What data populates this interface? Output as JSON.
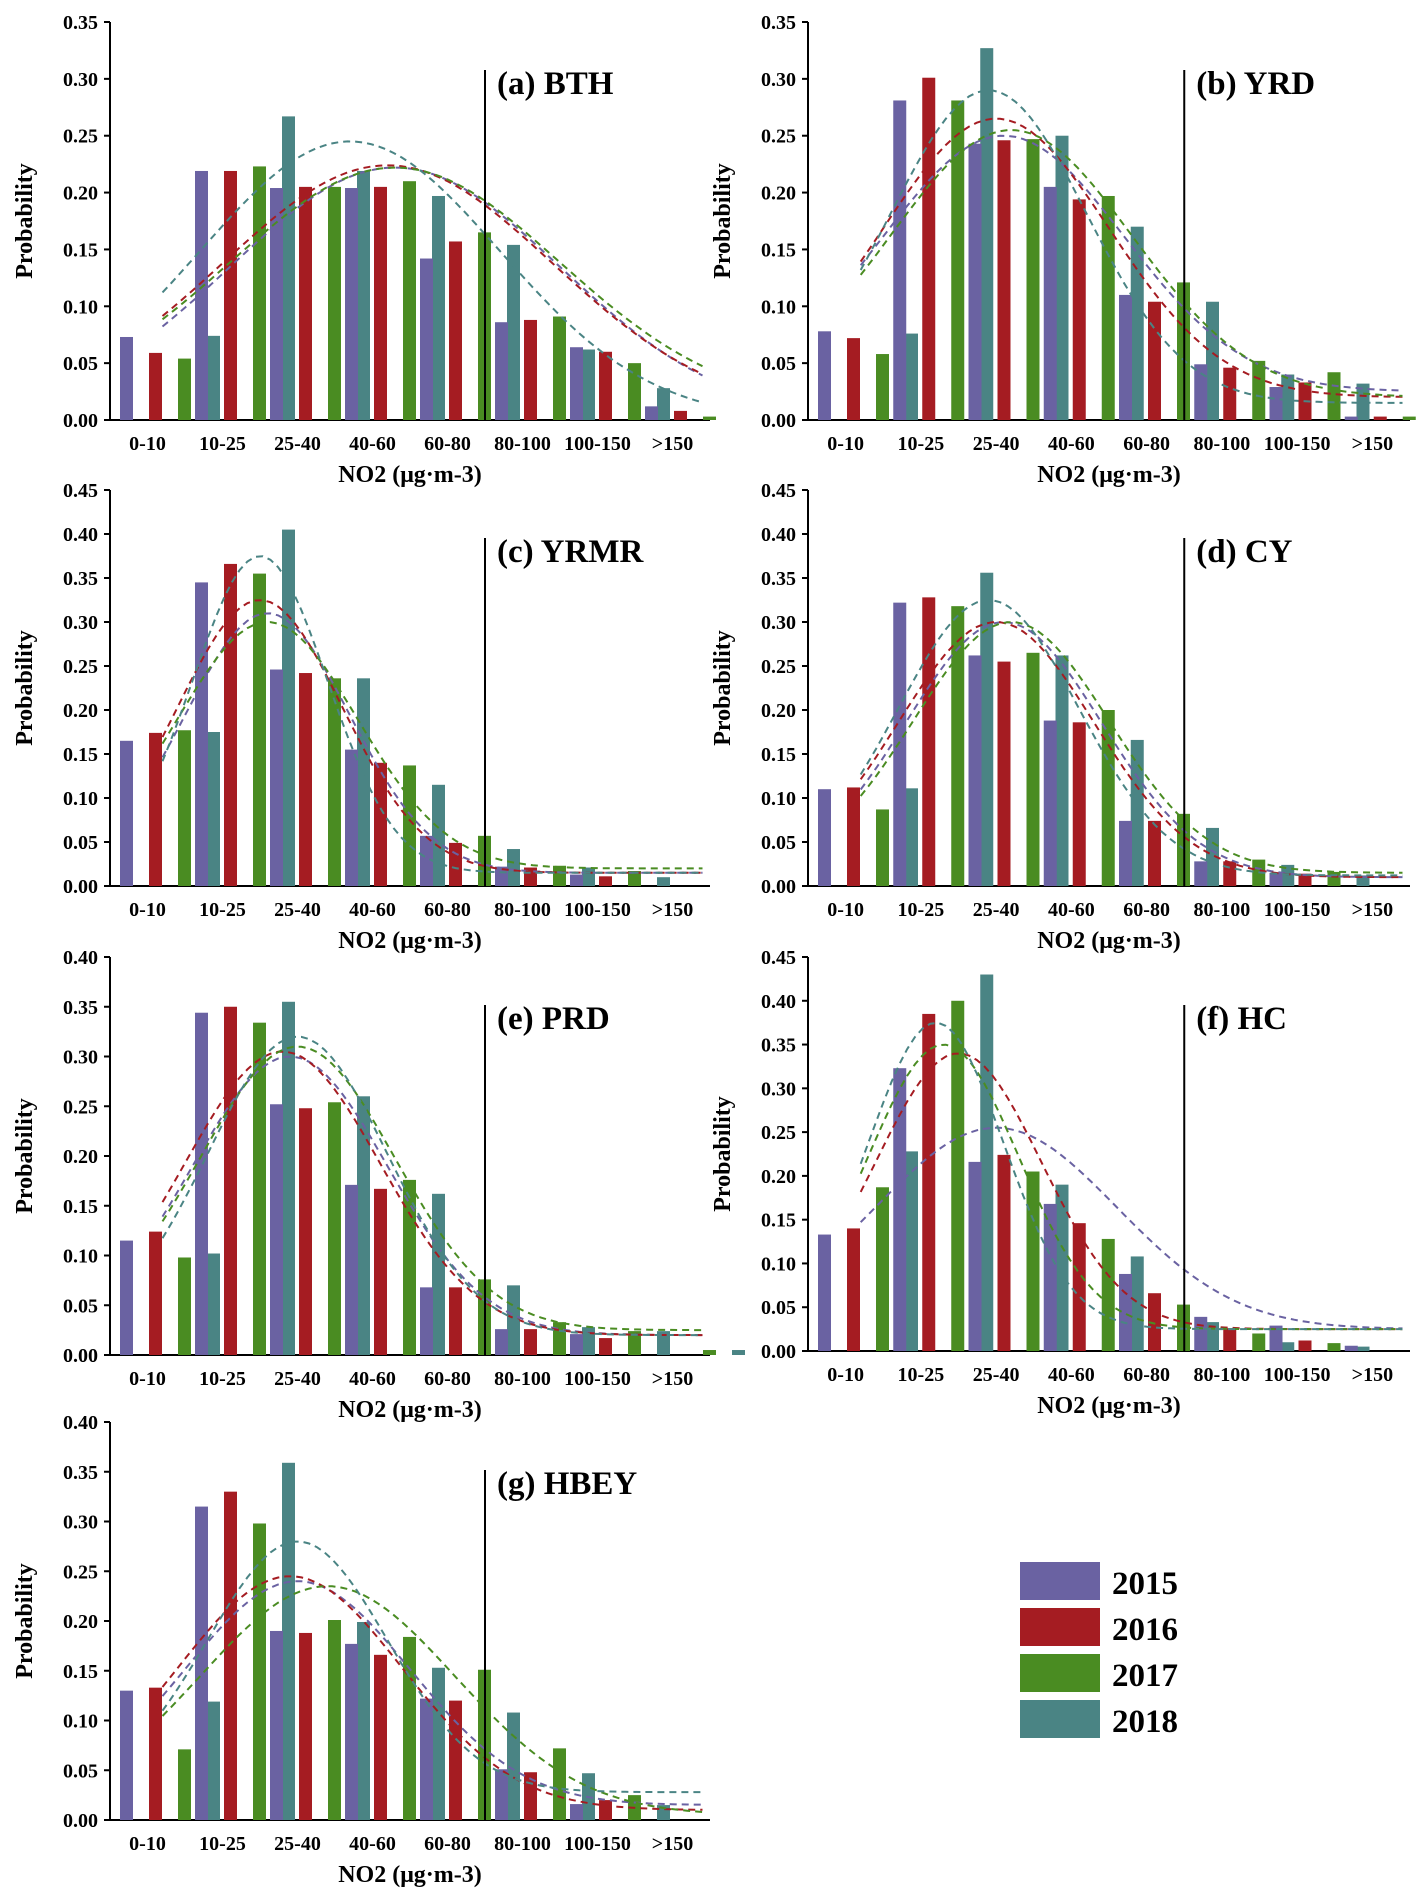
{
  "colors": {
    "2015": "#6a62a2",
    "2016": "#a51c22",
    "2017": "#4a8c22",
    "2018": "#4a8484"
  },
  "legend": [
    "2015",
    "2016",
    "2017",
    "2018"
  ],
  "chart_data": [
    {
      "type": "bar",
      "title": "(a) BTH",
      "xlabel": "NO2 (μg·m-3)",
      "ylabel": "Probability",
      "ylim": [
        0,
        0.35
      ],
      "yticks": [
        "0.00",
        "0.05",
        "0.10",
        "0.15",
        "0.20",
        "0.25",
        "0.30",
        "0.35"
      ],
      "categories": [
        "0-10",
        "10-25",
        "25-40",
        "40-60",
        "60-80",
        "80-100",
        "100-150",
        ">150"
      ],
      "threshold_between": [
        4,
        5
      ],
      "series": [
        {
          "name": "2015",
          "values": [
            0.073,
            0.219,
            0.204,
            0.204,
            0.142,
            0.086,
            0.064,
            0.012
          ]
        },
        {
          "name": "2016",
          "values": [
            0.059,
            0.219,
            0.205,
            0.205,
            0.157,
            0.088,
            0.06,
            0.008
          ]
        },
        {
          "name": "2017",
          "values": [
            0.054,
            0.223,
            0.205,
            0.21,
            0.165,
            0.091,
            0.05,
            0.003
          ]
        },
        {
          "name": "2018",
          "values": [
            0.074,
            0.267,
            0.219,
            0.197,
            0.154,
            0.062,
            0.028,
            0.0
          ]
        }
      ],
      "curves": [
        {
          "name": "2015",
          "peak": 0.222,
          "mu": 3.3,
          "sigma": 2.2,
          "base": 0.0
        },
        {
          "name": "2016",
          "peak": 0.224,
          "mu": 3.2,
          "sigma": 2.2,
          "base": 0.005
        },
        {
          "name": "2017",
          "peak": 0.222,
          "mu": 3.3,
          "sigma": 2.2,
          "base": 0.01
        },
        {
          "name": "2018",
          "peak": 0.245,
          "mu": 2.7,
          "sigma": 2.0,
          "base": 0.0
        }
      ]
    },
    {
      "type": "bar",
      "title": "(b) YRD",
      "xlabel": "NO2 (μg·m-3)",
      "ylabel": "Probability",
      "ylim": [
        0,
        0.35
      ],
      "yticks": [
        "0.00",
        "0.05",
        "0.10",
        "0.15",
        "0.20",
        "0.25",
        "0.30",
        "0.35"
      ],
      "categories": [
        "0-10",
        "10-25",
        "25-40",
        "40-60",
        "60-80",
        "80-100",
        "100-150",
        ">150"
      ],
      "threshold_between": [
        4,
        5
      ],
      "series": [
        {
          "name": "2015",
          "values": [
            0.078,
            0.281,
            0.243,
            0.205,
            0.11,
            0.049,
            0.029,
            0.003
          ]
        },
        {
          "name": "2016",
          "values": [
            0.072,
            0.301,
            0.246,
            0.194,
            0.104,
            0.046,
            0.033,
            0.003
          ]
        },
        {
          "name": "2017",
          "values": [
            0.058,
            0.281,
            0.247,
            0.197,
            0.121,
            0.052,
            0.042,
            0.003
          ]
        },
        {
          "name": "2018",
          "values": [
            0.076,
            0.327,
            0.25,
            0.17,
            0.104,
            0.04,
            0.032,
            0.0
          ]
        }
      ],
      "curves": [
        {
          "name": "2015",
          "peak": 0.25,
          "mu": 2.1,
          "sigma": 1.6,
          "base": 0.025
        },
        {
          "name": "2016",
          "peak": 0.265,
          "mu": 2.0,
          "sigma": 1.5,
          "base": 0.02
        },
        {
          "name": "2017",
          "peak": 0.255,
          "mu": 2.2,
          "sigma": 1.6,
          "base": 0.02
        },
        {
          "name": "2018",
          "peak": 0.29,
          "mu": 1.9,
          "sigma": 1.3,
          "base": 0.015
        }
      ]
    },
    {
      "type": "bar",
      "title": "(c) YRMR",
      "xlabel": "NO2 (μg·m-3)",
      "ylabel": "Probability",
      "ylim": [
        0,
        0.45
      ],
      "yticks": [
        "0.00",
        "0.05",
        "0.10",
        "0.15",
        "0.20",
        "0.25",
        "0.30",
        "0.35",
        "0.40",
        "0.45"
      ],
      "categories": [
        "0-10",
        "10-25",
        "25-40",
        "40-60",
        "60-80",
        "80-100",
        "100-150",
        ">150"
      ],
      "threshold_between": [
        4,
        5
      ],
      "series": [
        {
          "name": "2015",
          "values": [
            0.165,
            0.345,
            0.246,
            0.155,
            0.057,
            0.022,
            0.013,
            0.0
          ]
        },
        {
          "name": "2016",
          "values": [
            0.174,
            0.366,
            0.242,
            0.14,
            0.049,
            0.021,
            0.011,
            0.0
          ]
        },
        {
          "name": "2017",
          "values": [
            0.177,
            0.355,
            0.236,
            0.137,
            0.057,
            0.023,
            0.017,
            0.0
          ]
        },
        {
          "name": "2018",
          "values": [
            0.175,
            0.405,
            0.236,
            0.115,
            0.042,
            0.021,
            0.01,
            0.0
          ]
        }
      ],
      "curves": [
        {
          "name": "2015",
          "peak": 0.31,
          "mu": 1.6,
          "sigma": 1.1,
          "base": 0.015
        },
        {
          "name": "2016",
          "peak": 0.325,
          "mu": 1.5,
          "sigma": 1.1,
          "base": 0.015
        },
        {
          "name": "2017",
          "peak": 0.3,
          "mu": 1.6,
          "sigma": 1.2,
          "base": 0.02
        },
        {
          "name": "2018",
          "peak": 0.375,
          "mu": 1.5,
          "sigma": 0.9,
          "base": 0.015
        }
      ]
    },
    {
      "type": "bar",
      "title": "(d) CY",
      "xlabel": "NO2 (μg·m-3)",
      "ylabel": "Probability",
      "ylim": [
        0,
        0.45
      ],
      "yticks": [
        "0.00",
        "0.05",
        "0.10",
        "0.15",
        "0.20",
        "0.25",
        "0.30",
        "0.35",
        "0.40",
        "0.45"
      ],
      "categories": [
        "0-10",
        "10-25",
        "25-40",
        "40-60",
        "60-80",
        "80-100",
        "100-150",
        ">150"
      ],
      "threshold_between": [
        4,
        5
      ],
      "series": [
        {
          "name": "2015",
          "values": [
            0.11,
            0.322,
            0.262,
            0.188,
            0.074,
            0.028,
            0.015,
            0.0
          ]
        },
        {
          "name": "2016",
          "values": [
            0.112,
            0.328,
            0.255,
            0.186,
            0.074,
            0.028,
            0.014,
            0.0
          ]
        },
        {
          "name": "2017",
          "values": [
            0.087,
            0.318,
            0.265,
            0.2,
            0.082,
            0.03,
            0.016,
            0.0
          ]
        },
        {
          "name": "2018",
          "values": [
            0.111,
            0.356,
            0.262,
            0.166,
            0.066,
            0.024,
            0.012,
            0.0
          ]
        }
      ],
      "curves": [
        {
          "name": "2015",
          "peak": 0.3,
          "mu": 2.1,
          "sigma": 1.3,
          "base": 0.01
        },
        {
          "name": "2016",
          "peak": 0.3,
          "mu": 2.0,
          "sigma": 1.3,
          "base": 0.01
        },
        {
          "name": "2017",
          "peak": 0.3,
          "mu": 2.2,
          "sigma": 1.3,
          "base": 0.015
        },
        {
          "name": "2018",
          "peak": 0.325,
          "mu": 1.9,
          "sigma": 1.2,
          "base": 0.012
        }
      ]
    },
    {
      "type": "bar",
      "title": "(e) PRD",
      "xlabel": "NO2 (μg·m-3)",
      "ylabel": "Probability",
      "ylim": [
        0,
        0.4
      ],
      "yticks": [
        "0.00",
        "0.05",
        "0.10",
        "0.15",
        "0.20",
        "0.25",
        "0.30",
        "0.35",
        "0.40"
      ],
      "categories": [
        "0-10",
        "10-25",
        "25-40",
        "40-60",
        "60-80",
        "80-100",
        "100-150",
        ">150"
      ],
      "threshold_between": [
        4,
        5
      ],
      "series": [
        {
          "name": "2015",
          "values": [
            0.115,
            0.344,
            0.252,
            0.171,
            0.068,
            0.026,
            0.021,
            0.0
          ]
        },
        {
          "name": "2016",
          "values": [
            0.124,
            0.35,
            0.248,
            0.167,
            0.068,
            0.026,
            0.017,
            0.0
          ]
        },
        {
          "name": "2017",
          "values": [
            0.098,
            0.334,
            0.254,
            0.176,
            0.076,
            0.033,
            0.024,
            0.005
          ]
        },
        {
          "name": "2018",
          "values": [
            0.102,
            0.355,
            0.26,
            0.162,
            0.07,
            0.028,
            0.024,
            0.005
          ]
        }
      ],
      "curves": [
        {
          "name": "2015",
          "peak": 0.3,
          "mu": 1.9,
          "sigma": 1.3,
          "base": 0.02
        },
        {
          "name": "2016",
          "peak": 0.305,
          "mu": 1.8,
          "sigma": 1.3,
          "base": 0.02
        },
        {
          "name": "2017",
          "peak": 0.31,
          "mu": 2.0,
          "sigma": 1.3,
          "base": 0.025
        },
        {
          "name": "2018",
          "peak": 0.32,
          "mu": 2.0,
          "sigma": 1.2,
          "base": 0.02
        }
      ]
    },
    {
      "type": "bar",
      "title": "(f) HC",
      "xlabel": "NO2 (μg·m-3)",
      "ylabel": "Probability",
      "ylim": [
        0,
        0.45
      ],
      "yticks": [
        "0.00",
        "0.05",
        "0.10",
        "0.15",
        "0.20",
        "0.25",
        "0.30",
        "0.35",
        "0.40",
        "0.45"
      ],
      "categories": [
        "0-10",
        "10-25",
        "25-40",
        "40-60",
        "60-80",
        "80-100",
        "100-150",
        ">150"
      ],
      "threshold_between": [
        4,
        5
      ],
      "series": [
        {
          "name": "2015",
          "values": [
            0.133,
            0.323,
            0.216,
            0.168,
            0.088,
            0.039,
            0.029,
            0.006
          ]
        },
        {
          "name": "2016",
          "values": [
            0.14,
            0.385,
            0.224,
            0.146,
            0.066,
            0.026,
            0.012,
            0.0
          ]
        },
        {
          "name": "2017",
          "values": [
            0.187,
            0.4,
            0.205,
            0.128,
            0.053,
            0.02,
            0.009,
            0.0
          ]
        },
        {
          "name": "2018",
          "values": [
            0.228,
            0.43,
            0.19,
            0.108,
            0.033,
            0.01,
            0.005,
            0.0
          ]
        }
      ],
      "curves": [
        {
          "name": "2015",
          "peak": 0.255,
          "mu": 2.0,
          "sigma": 1.6,
          "base": 0.025
        },
        {
          "name": "2016",
          "peak": 0.34,
          "mu": 1.5,
          "sigma": 1.1,
          "base": 0.025
        },
        {
          "name": "2017",
          "peak": 0.35,
          "mu": 1.3,
          "sigma": 1.0,
          "base": 0.025
        },
        {
          "name": "2018",
          "peak": 0.375,
          "mu": 1.2,
          "sigma": 0.9,
          "base": 0.025
        }
      ]
    },
    {
      "type": "bar",
      "title": "(g) HBEY",
      "xlabel": "NO2 (μg·m-3)",
      "ylabel": "Probability",
      "ylim": [
        0,
        0.4
      ],
      "yticks": [
        "0.00",
        "0.05",
        "0.10",
        "0.15",
        "0.20",
        "0.25",
        "0.30",
        "0.35",
        "0.40"
      ],
      "categories": [
        "0-10",
        "10-25",
        "25-40",
        "40-60",
        "60-80",
        "80-100",
        "100-150",
        ">150"
      ],
      "threshold_between": [
        4,
        5
      ],
      "series": [
        {
          "name": "2015",
          "values": [
            0.13,
            0.315,
            0.19,
            0.177,
            0.122,
            0.051,
            0.016,
            0.0
          ]
        },
        {
          "name": "2016",
          "values": [
            0.133,
            0.33,
            0.188,
            0.166,
            0.12,
            0.048,
            0.02,
            0.0
          ]
        },
        {
          "name": "2017",
          "values": [
            0.071,
            0.298,
            0.201,
            0.184,
            0.151,
            0.072,
            0.025,
            0.0
          ]
        },
        {
          "name": "2018",
          "values": [
            0.119,
            0.359,
            0.199,
            0.153,
            0.108,
            0.047,
            0.015,
            0.0
          ]
        }
      ],
      "curves": [
        {
          "name": "2015",
          "peak": 0.24,
          "mu": 2.0,
          "sigma": 1.5,
          "base": 0.015
        },
        {
          "name": "2016",
          "peak": 0.245,
          "mu": 1.9,
          "sigma": 1.5,
          "base": 0.01
        },
        {
          "name": "2017",
          "peak": 0.235,
          "mu": 2.4,
          "sigma": 1.7,
          "base": 0.005
        },
        {
          "name": "2018",
          "peak": 0.28,
          "mu": 2.0,
          "sigma": 1.2,
          "base": 0.028
        }
      ]
    }
  ]
}
